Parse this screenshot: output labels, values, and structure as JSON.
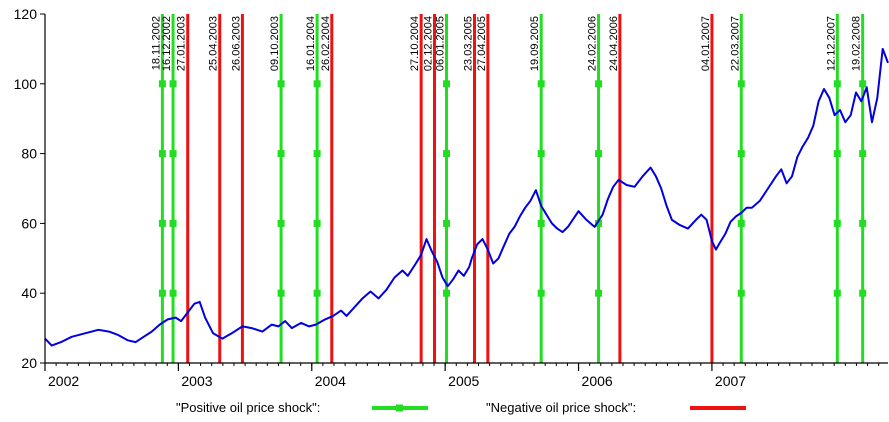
{
  "chart_data": {
    "type": "line",
    "title": "",
    "xlabel": "",
    "ylabel": "",
    "ylim": [
      20,
      120
    ],
    "yticks": [
      20,
      40,
      60,
      80,
      100,
      120
    ],
    "x_range": [
      2002.0,
      2008.32
    ],
    "year_ticks": [
      {
        "label": "2002",
        "x": 2002.0
      },
      {
        "label": "2003",
        "x": 2003.0
      },
      {
        "label": "2004",
        "x": 2004.0
      },
      {
        "label": "2005",
        "x": 2005.0
      },
      {
        "label": "2006",
        "x": 2006.0
      },
      {
        "label": "2007",
        "x": 2007.0
      }
    ],
    "grid": false,
    "colors": {
      "price": "#0000e0",
      "positive": "#22dd22",
      "negative": "#ee1111"
    },
    "series": [
      {
        "points": [
          [
            2002.0,
            27
          ],
          [
            2002.05,
            25
          ],
          [
            2002.12,
            26
          ],
          [
            2002.2,
            27.5
          ],
          [
            2002.3,
            28.5
          ],
          [
            2002.4,
            29.5
          ],
          [
            2002.48,
            29
          ],
          [
            2002.55,
            28
          ],
          [
            2002.62,
            26.5
          ],
          [
            2002.68,
            26
          ],
          [
            2002.74,
            27.5
          ],
          [
            2002.8,
            29
          ],
          [
            2002.86,
            31
          ],
          [
            2002.92,
            32.5
          ],
          [
            2002.98,
            33
          ],
          [
            2003.02,
            32
          ],
          [
            2003.08,
            35
          ],
          [
            2003.12,
            37
          ],
          [
            2003.16,
            37.5
          ],
          [
            2003.2,
            33
          ],
          [
            2003.26,
            28.5
          ],
          [
            2003.33,
            27
          ],
          [
            2003.4,
            28.5
          ],
          [
            2003.48,
            30.5
          ],
          [
            2003.55,
            30
          ],
          [
            2003.63,
            29
          ],
          [
            2003.7,
            31
          ],
          [
            2003.75,
            30.5
          ],
          [
            2003.8,
            32
          ],
          [
            2003.85,
            30
          ],
          [
            2003.92,
            31.5
          ],
          [
            2003.98,
            30.5
          ],
          [
            2004.03,
            31
          ],
          [
            2004.1,
            32.5
          ],
          [
            2004.16,
            33.5
          ],
          [
            2004.22,
            35
          ],
          [
            2004.26,
            33.5
          ],
          [
            2004.32,
            36
          ],
          [
            2004.38,
            38.5
          ],
          [
            2004.44,
            40.5
          ],
          [
            2004.5,
            38.5
          ],
          [
            2004.56,
            41
          ],
          [
            2004.62,
            44.5
          ],
          [
            2004.68,
            46.5
          ],
          [
            2004.72,
            45
          ],
          [
            2004.78,
            48.5
          ],
          [
            2004.82,
            51
          ],
          [
            2004.86,
            55.5
          ],
          [
            2004.9,
            52
          ],
          [
            2004.94,
            49
          ],
          [
            2004.98,
            44.5
          ],
          [
            2005.02,
            42
          ],
          [
            2005.06,
            44
          ],
          [
            2005.1,
            46.5
          ],
          [
            2005.14,
            45
          ],
          [
            2005.18,
            47.5
          ],
          [
            2005.2,
            50
          ],
          [
            2005.24,
            54
          ],
          [
            2005.28,
            55.5
          ],
          [
            2005.32,
            52.5
          ],
          [
            2005.36,
            48.5
          ],
          [
            2005.4,
            50
          ],
          [
            2005.44,
            53.5
          ],
          [
            2005.48,
            57
          ],
          [
            2005.52,
            59
          ],
          [
            2005.56,
            62
          ],
          [
            2005.6,
            64.5
          ],
          [
            2005.64,
            66.5
          ],
          [
            2005.68,
            69.5
          ],
          [
            2005.72,
            65
          ],
          [
            2005.76,
            62.5
          ],
          [
            2005.8,
            60
          ],
          [
            2005.84,
            58.5
          ],
          [
            2005.88,
            57.5
          ],
          [
            2005.92,
            59
          ],
          [
            2006.0,
            63.5
          ],
          [
            2006.06,
            61
          ],
          [
            2006.12,
            59
          ],
          [
            2006.18,
            62.5
          ],
          [
            2006.22,
            67
          ],
          [
            2006.26,
            70.5
          ],
          [
            2006.3,
            72.5
          ],
          [
            2006.36,
            71
          ],
          [
            2006.42,
            70.5
          ],
          [
            2006.48,
            73.5
          ],
          [
            2006.54,
            76
          ],
          [
            2006.58,
            73.5
          ],
          [
            2006.62,
            70
          ],
          [
            2006.66,
            65
          ],
          [
            2006.7,
            61
          ],
          [
            2006.76,
            59.5
          ],
          [
            2006.82,
            58.5
          ],
          [
            2006.88,
            61
          ],
          [
            2006.92,
            62.5
          ],
          [
            2006.96,
            61
          ],
          [
            2007.0,
            55
          ],
          [
            2007.03,
            52.5
          ],
          [
            2007.06,
            54.5
          ],
          [
            2007.1,
            57
          ],
          [
            2007.14,
            60.5
          ],
          [
            2007.18,
            62
          ],
          [
            2007.22,
            63
          ],
          [
            2007.26,
            64.5
          ],
          [
            2007.3,
            64.5
          ],
          [
            2007.36,
            66.5
          ],
          [
            2007.42,
            70
          ],
          [
            2007.48,
            73.5
          ],
          [
            2007.52,
            75.5
          ],
          [
            2007.56,
            71.5
          ],
          [
            2007.6,
            73.5
          ],
          [
            2007.64,
            79
          ],
          [
            2007.68,
            82
          ],
          [
            2007.72,
            84.5
          ],
          [
            2007.76,
            88
          ],
          [
            2007.8,
            95
          ],
          [
            2007.84,
            98.5
          ],
          [
            2007.88,
            96
          ],
          [
            2007.92,
            91
          ],
          [
            2007.96,
            92.5
          ],
          [
            2008.0,
            89
          ],
          [
            2008.04,
            91
          ],
          [
            2008.08,
            97.5
          ],
          [
            2008.12,
            95
          ],
          [
            2008.16,
            99
          ],
          [
            2008.2,
            89
          ],
          [
            2008.24,
            96
          ],
          [
            2008.28,
            110
          ],
          [
            2008.32,
            106
          ]
        ]
      }
    ],
    "shocks": [
      {
        "label": "18.11.2002",
        "kind": "positive",
        "x": 2002.88
      },
      {
        "label": "16.12.2002",
        "kind": "positive",
        "x": 2002.96
      },
      {
        "label": "27.01.2003",
        "kind": "negative",
        "x": 2003.07
      },
      {
        "label": "25.04.2003",
        "kind": "negative",
        "x": 2003.31
      },
      {
        "label": "26.06.2003",
        "kind": "negative",
        "x": 2003.48
      },
      {
        "label": "09.10.2003",
        "kind": "positive",
        "x": 2003.77
      },
      {
        "label": "16.01.2004",
        "kind": "positive",
        "x": 2004.04
      },
      {
        "label": "26.02.2004",
        "kind": "negative",
        "x": 2004.15
      },
      {
        "label": "27.10.2004",
        "kind": "negative",
        "x": 2004.82
      },
      {
        "label": "02.12.2004",
        "kind": "negative",
        "x": 2004.92
      },
      {
        "label": "06.01.2005",
        "kind": "positive",
        "x": 2005.01
      },
      {
        "label": "23.03.2005",
        "kind": "negative",
        "x": 2005.22
      },
      {
        "label": "27.04.2005",
        "kind": "negative",
        "x": 2005.32
      },
      {
        "label": "19.09.2005",
        "kind": "positive",
        "x": 2005.72
      },
      {
        "label": "24.02.2006",
        "kind": "positive",
        "x": 2006.15
      },
      {
        "label": "24.04.2006",
        "kind": "negative",
        "x": 2006.31
      },
      {
        "label": "04.01.2007",
        "kind": "negative",
        "x": 2007.0
      },
      {
        "label": "22.03.2007",
        "kind": "positive",
        "x": 2007.22
      },
      {
        "label": "12.12.2007",
        "kind": "positive",
        "x": 2007.94
      },
      {
        "label": "19.02.2008",
        "kind": "positive",
        "x": 2008.13
      }
    ],
    "legend": {
      "placement": "bottom",
      "positive_label": "\"Positive oil price shock\":",
      "negative_label": "\"Negative oil price shock\":"
    }
  }
}
